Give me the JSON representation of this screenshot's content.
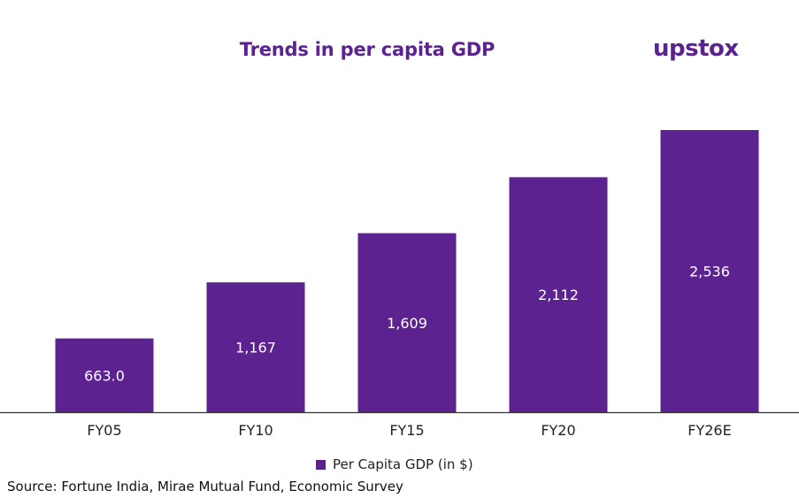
{
  "brand": {
    "logo_text": "upstox"
  },
  "chart_data": {
    "type": "bar",
    "title": "Trends in per capita GDP",
    "categories": [
      "FY05",
      "FY10",
      "FY15",
      "FY20",
      "FY26E"
    ],
    "series": [
      {
        "name": "Per Capita GDP (in $)",
        "values": [
          663.0,
          1167,
          1609,
          2112,
          2536
        ],
        "data_labels": [
          "663.0",
          "1,167",
          "1,609",
          "2,112",
          "2,536"
        ],
        "color": "#5B2290"
      }
    ],
    "ylim": [
      0,
      2536
    ],
    "grid": false,
    "legend_position": "bottom",
    "xlabel": "",
    "ylabel": ""
  },
  "source": "Source: Fortune India, Mirae Mutual Fund, Economic Survey",
  "colors": {
    "bar": "#5B2290",
    "title": "#5B2290",
    "bar_label": "#ffffff",
    "axis_line": "#333333"
  }
}
